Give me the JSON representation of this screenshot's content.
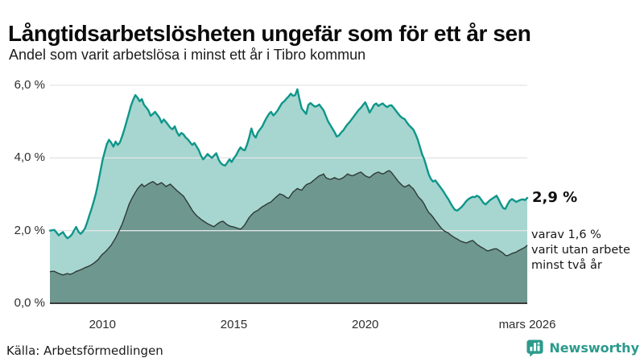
{
  "header": {
    "title": "Långtidsarbetslösheten ungefär som för ett år sen",
    "subtitle": "Andel som varit arbetslösa i minst ett år i Tibro kommun"
  },
  "footer": {
    "source": "Källa: Arbetsförmedlingen",
    "brand": "Newsworthy"
  },
  "colors": {
    "accent_teal": "#0f968a",
    "fill_light": "#a6d6cf",
    "fill_dark": "#6e978f",
    "line_dark": "#2e3a37",
    "gridline": "#e1e4e8",
    "axis": "#3a3a3a",
    "brand_teal": "#2b9a8c"
  },
  "chart_data": {
    "type": "area",
    "title": "Långtidsarbetslösheten ungefär som för ett år sen",
    "subtitle": "Andel som varit arbetslösa i minst ett år i Tibro kommun",
    "unit": "%",
    "grid": true,
    "x_range": [
      2008.0,
      2026.1667
    ],
    "ylim": [
      0,
      6
    ],
    "x_ticks": [
      {
        "label": "2010",
        "year": 2010
      },
      {
        "label": "2015",
        "year": 2015
      },
      {
        "label": "2020",
        "year": 2020
      },
      {
        "label": "mars 2026",
        "year": 2026.1667
      }
    ],
    "y_ticks": [
      {
        "label": "0,0 %",
        "value": 0
      },
      {
        "label": "2,0 %",
        "value": 2
      },
      {
        "label": "4,0 %",
        "value": 4
      },
      {
        "label": "6,0 %",
        "value": 6
      }
    ],
    "series": [
      {
        "name": "Andel som varit arbetslösa i minst ett år",
        "end_label": "2,9 %",
        "end_value": 2.9,
        "start_year": 2008,
        "points_per_year": 12,
        "values": [
          2.0,
          2.01,
          2.02,
          1.95,
          1.87,
          1.92,
          1.96,
          1.86,
          1.79,
          1.83,
          1.89,
          2.0,
          2.1,
          1.97,
          1.91,
          1.97,
          2.06,
          2.22,
          2.42,
          2.6,
          2.8,
          3.02,
          3.3,
          3.62,
          3.93,
          4.16,
          4.38,
          4.5,
          4.42,
          4.31,
          4.45,
          4.36,
          4.43,
          4.6,
          4.79,
          5.0,
          5.21,
          5.43,
          5.6,
          5.73,
          5.66,
          5.56,
          5.62,
          5.46,
          5.39,
          5.31,
          5.16,
          5.21,
          5.27,
          5.19,
          5.11,
          4.97,
          5.06,
          4.99,
          4.91,
          4.83,
          4.79,
          4.87,
          4.71,
          4.61,
          4.69,
          4.65,
          4.56,
          4.51,
          4.43,
          4.36,
          4.41,
          4.31,
          4.21,
          4.06,
          3.96,
          4.03,
          4.11,
          4.05,
          4.0,
          4.07,
          4.13,
          3.96,
          3.86,
          3.81,
          3.79,
          3.87,
          3.96,
          3.89,
          3.99,
          4.07,
          4.19,
          4.29,
          4.23,
          4.21,
          4.36,
          4.56,
          4.81,
          4.63,
          4.56,
          4.71,
          4.79,
          4.87,
          5.0,
          5.11,
          5.21,
          5.27,
          5.17,
          5.23,
          5.31,
          5.41,
          5.51,
          5.56,
          5.63,
          5.69,
          5.77,
          5.71,
          5.73,
          5.89,
          5.61,
          5.36,
          5.29,
          5.21,
          5.46,
          5.51,
          5.46,
          5.41,
          5.43,
          5.47,
          5.39,
          5.31,
          5.16,
          5.01,
          4.91,
          4.81,
          4.71,
          4.59,
          4.62,
          4.7,
          4.76,
          4.85,
          4.93,
          5.0,
          5.08,
          5.16,
          5.24,
          5.32,
          5.38,
          5.46,
          5.53,
          5.4,
          5.25,
          5.35,
          5.46,
          5.5,
          5.43,
          5.47,
          5.5,
          5.44,
          5.4,
          5.44,
          5.45,
          5.38,
          5.3,
          5.22,
          5.15,
          5.1,
          5.07,
          4.98,
          4.9,
          4.84,
          4.78,
          4.65,
          4.5,
          4.3,
          4.1,
          3.95,
          3.75,
          3.55,
          3.42,
          3.35,
          3.38,
          3.3,
          3.22,
          3.14,
          3.05,
          2.95,
          2.86,
          2.75,
          2.65,
          2.57,
          2.55,
          2.6,
          2.65,
          2.72,
          2.8,
          2.86,
          2.9,
          2.93,
          2.92,
          2.96,
          2.93,
          2.85,
          2.76,
          2.72,
          2.78,
          2.84,
          2.88,
          2.92,
          2.96,
          2.85,
          2.72,
          2.62,
          2.6,
          2.72,
          2.82,
          2.87,
          2.83,
          2.79,
          2.82,
          2.85,
          2.86,
          2.84,
          2.9
        ]
      },
      {
        "name": "varav utan arbete minst två år",
        "end_label": "1,6 %",
        "end_value": 1.6,
        "annotation_lines": [
          "varav 1,6 %",
          "varit utan arbete",
          "minst två år"
        ],
        "start_year": 2008,
        "points_per_year": 12,
        "values": [
          0.87,
          0.88,
          0.88,
          0.85,
          0.82,
          0.8,
          0.78,
          0.8,
          0.82,
          0.8,
          0.81,
          0.84,
          0.88,
          0.9,
          0.92,
          0.95,
          0.98,
          1.0,
          1.03,
          1.06,
          1.1,
          1.15,
          1.2,
          1.28,
          1.35,
          1.4,
          1.46,
          1.53,
          1.6,
          1.7,
          1.8,
          1.92,
          2.05,
          2.18,
          2.35,
          2.52,
          2.7,
          2.83,
          2.95,
          3.05,
          3.15,
          3.22,
          3.28,
          3.21,
          3.25,
          3.29,
          3.32,
          3.35,
          3.31,
          3.26,
          3.29,
          3.32,
          3.27,
          3.21,
          3.25,
          3.28,
          3.22,
          3.16,
          3.1,
          3.05,
          3.0,
          2.95,
          2.85,
          2.76,
          2.66,
          2.56,
          2.48,
          2.41,
          2.36,
          2.31,
          2.27,
          2.23,
          2.19,
          2.16,
          2.13,
          2.11,
          2.16,
          2.21,
          2.24,
          2.26,
          2.21,
          2.16,
          2.13,
          2.11,
          2.1,
          2.08,
          2.06,
          2.04,
          2.09,
          2.16,
          2.26,
          2.36,
          2.43,
          2.49,
          2.53,
          2.56,
          2.61,
          2.66,
          2.69,
          2.73,
          2.76,
          2.79,
          2.85,
          2.91,
          2.96,
          3.01,
          2.99,
          2.96,
          2.91,
          2.89,
          2.97,
          3.06,
          3.11,
          3.16,
          3.13,
          3.11,
          3.19,
          3.26,
          3.29,
          3.31,
          3.36,
          3.41,
          3.46,
          3.51,
          3.53,
          3.56,
          3.46,
          3.43,
          3.41,
          3.43,
          3.46,
          3.43,
          3.41,
          3.43,
          3.46,
          3.51,
          3.56,
          3.53,
          3.51,
          3.53,
          3.56,
          3.59,
          3.61,
          3.56,
          3.51,
          3.48,
          3.46,
          3.51,
          3.56,
          3.59,
          3.61,
          3.58,
          3.56,
          3.59,
          3.63,
          3.65,
          3.6,
          3.52,
          3.44,
          3.36,
          3.3,
          3.24,
          3.2,
          3.23,
          3.26,
          3.2,
          3.15,
          3.05,
          2.95,
          2.88,
          2.82,
          2.72,
          2.6,
          2.5,
          2.44,
          2.37,
          2.28,
          2.2,
          2.12,
          2.05,
          2.0,
          1.96,
          1.93,
          1.88,
          1.84,
          1.8,
          1.77,
          1.73,
          1.7,
          1.68,
          1.66,
          1.68,
          1.71,
          1.73,
          1.68,
          1.62,
          1.58,
          1.54,
          1.51,
          1.47,
          1.44,
          1.46,
          1.48,
          1.5,
          1.5,
          1.46,
          1.42,
          1.38,
          1.32,
          1.31,
          1.34,
          1.37,
          1.39,
          1.41,
          1.45,
          1.48,
          1.51,
          1.54,
          1.6
        ]
      }
    ]
  }
}
